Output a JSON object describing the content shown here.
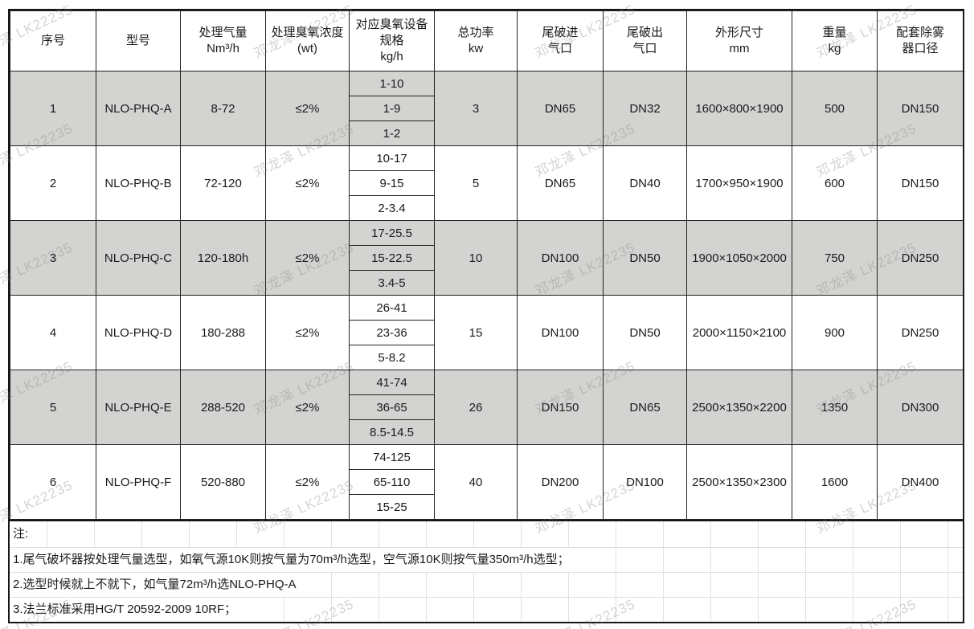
{
  "watermark": {
    "text": "邓龙泽 LK22235"
  },
  "colors": {
    "row_shaded": "#d3d3d1",
    "row_plain": "#ffffff",
    "grid_dark": "#222220",
    "grid_faint": "#e2e2e0"
  },
  "table": {
    "columns": [
      {
        "id": "serial",
        "lines": [
          "序号"
        ]
      },
      {
        "id": "model",
        "lines": [
          "型号"
        ]
      },
      {
        "id": "airflow",
        "lines": [
          "处理气量",
          "Nm³/h"
        ]
      },
      {
        "id": "concentration",
        "lines": [
          "处理臭氧浓度",
          "(wt)"
        ]
      },
      {
        "id": "ozone-spec",
        "lines": [
          "对应臭氧设备",
          "规格",
          "kg/h"
        ]
      },
      {
        "id": "power",
        "lines": [
          "总功率",
          "kw"
        ]
      },
      {
        "id": "inlet",
        "lines": [
          "尾破进",
          "气口"
        ]
      },
      {
        "id": "outlet",
        "lines": [
          "尾破出",
          "气口"
        ]
      },
      {
        "id": "dimensions",
        "lines": [
          "外形尺寸",
          "mm"
        ]
      },
      {
        "id": "weight",
        "lines": [
          "重量",
          "kg"
        ]
      },
      {
        "id": "demister",
        "lines": [
          "配套除雾",
          "器口径"
        ]
      }
    ],
    "rows": [
      {
        "serial": "1",
        "model": "NLO-PHQ-A",
        "airflow": "8-72",
        "concentration": "≤2%",
        "ozone_specs": [
          "1-10",
          "1-9",
          "1-2"
        ],
        "power": "3",
        "inlet": "DN65",
        "outlet": "DN32",
        "dimensions": "1600×800×1900",
        "weight": "500",
        "demister": "DN150",
        "shaded": true
      },
      {
        "serial": "2",
        "model": "NLO-PHQ-B",
        "airflow": "72-120",
        "concentration": "≤2%",
        "ozone_specs": [
          "10-17",
          "9-15",
          "2-3.4"
        ],
        "power": "5",
        "inlet": "DN65",
        "outlet": "DN40",
        "dimensions": "1700×950×1900",
        "weight": "600",
        "demister": "DN150",
        "shaded": false
      },
      {
        "serial": "3",
        "model": "NLO-PHQ-C",
        "airflow": "120-180h",
        "concentration": "≤2%",
        "ozone_specs": [
          "17-25.5",
          "15-22.5",
          "3.4-5"
        ],
        "power": "10",
        "inlet": "DN100",
        "outlet": "DN50",
        "dimensions": "1900×1050×2000",
        "weight": "750",
        "demister": "DN250",
        "shaded": true
      },
      {
        "serial": "4",
        "model": "NLO-PHQ-D",
        "airflow": "180-288",
        "concentration": "≤2%",
        "ozone_specs": [
          "26-41",
          "23-36",
          "5-8.2"
        ],
        "power": "15",
        "inlet": "DN100",
        "outlet": "DN50",
        "dimensions": "2000×1150×2100",
        "weight": "900",
        "demister": "DN250",
        "shaded": false
      },
      {
        "serial": "5",
        "model": "NLO-PHQ-E",
        "airflow": "288-520",
        "concentration": "≤2%",
        "ozone_specs": [
          "41-74",
          "36-65",
          "8.5-14.5"
        ],
        "power": "26",
        "inlet": "DN150",
        "outlet": "DN65",
        "dimensions": "2500×1350×2200",
        "weight": "1350",
        "demister": "DN300",
        "shaded": true
      },
      {
        "serial": "6",
        "model": "NLO-PHQ-F",
        "airflow": "520-880",
        "concentration": "≤2%",
        "ozone_specs": [
          "74-125",
          "65-110",
          "15-25"
        ],
        "power": "40",
        "inlet": "DN200",
        "outlet": "DN100",
        "dimensions": "2500×1350×2300",
        "weight": "1600",
        "demister": "DN400",
        "shaded": false
      }
    ]
  },
  "notes": {
    "label": "注:",
    "items": [
      "1.尾气破坏器按处理气量选型，如氧气源10K则按气量为70m³/h选型，空气源10K则按气量350m³/h选型；",
      "2.选型时候就上不就下，如气量72m³/h选NLO-PHQ-A",
      "3.法兰标准采用HG/T 20592-2009 10RF；"
    ]
  }
}
